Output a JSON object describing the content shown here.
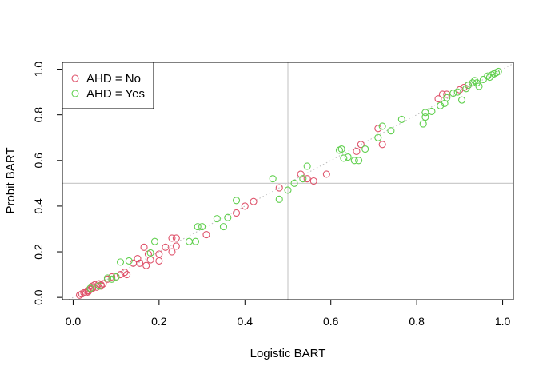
{
  "chart_data": {
    "type": "scatter",
    "xlabel": "Logistic BART",
    "ylabel": "Probit BART",
    "xlim": [
      -0.025,
      1.025
    ],
    "ylim": [
      -0.01,
      1.03
    ],
    "x_ticks": [
      "0.0",
      "0.2",
      "0.4",
      "0.6",
      "0.8",
      "1.0"
    ],
    "y_ticks": [
      "0.0",
      "0.2",
      "0.4",
      "0.6",
      "0.8",
      "1.0"
    ],
    "reference_lines": {
      "vertical_x": 0.5,
      "horizontal_y": 0.5,
      "diagonal": "y = x (dotted)"
    },
    "grid": false,
    "legend": {
      "position": "top-left",
      "entries": [
        {
          "label": "AHD = No",
          "color": "#DF536B"
        },
        {
          "label": "AHD = Yes",
          "color": "#61D04F"
        }
      ]
    },
    "series": [
      {
        "name": "AHD = No",
        "color": "#DF536B",
        "points": [
          [
            0.015,
            0.01
          ],
          [
            0.02,
            0.015
          ],
          [
            0.025,
            0.02
          ],
          [
            0.03,
            0.02
          ],
          [
            0.035,
            0.025
          ],
          [
            0.035,
            0.03
          ],
          [
            0.04,
            0.035
          ],
          [
            0.045,
            0.04
          ],
          [
            0.045,
            0.05
          ],
          [
            0.05,
            0.055
          ],
          [
            0.055,
            0.045
          ],
          [
            0.06,
            0.06
          ],
          [
            0.065,
            0.05
          ],
          [
            0.065,
            0.055
          ],
          [
            0.07,
            0.06
          ],
          [
            0.08,
            0.08
          ],
          [
            0.09,
            0.09
          ],
          [
            0.1,
            0.09
          ],
          [
            0.11,
            0.1
          ],
          [
            0.12,
            0.11
          ],
          [
            0.125,
            0.1
          ],
          [
            0.14,
            0.15
          ],
          [
            0.15,
            0.17
          ],
          [
            0.155,
            0.15
          ],
          [
            0.165,
            0.22
          ],
          [
            0.17,
            0.14
          ],
          [
            0.175,
            0.19
          ],
          [
            0.18,
            0.165
          ],
          [
            0.2,
            0.16
          ],
          [
            0.2,
            0.19
          ],
          [
            0.215,
            0.22
          ],
          [
            0.23,
            0.2
          ],
          [
            0.23,
            0.26
          ],
          [
            0.24,
            0.26
          ],
          [
            0.24,
            0.225
          ],
          [
            0.31,
            0.275
          ],
          [
            0.38,
            0.37
          ],
          [
            0.4,
            0.4
          ],
          [
            0.42,
            0.42
          ],
          [
            0.48,
            0.48
          ],
          [
            0.53,
            0.54
          ],
          [
            0.545,
            0.52
          ],
          [
            0.56,
            0.51
          ],
          [
            0.59,
            0.54
          ],
          [
            0.66,
            0.64
          ],
          [
            0.67,
            0.67
          ],
          [
            0.71,
            0.74
          ],
          [
            0.72,
            0.67
          ],
          [
            0.85,
            0.87
          ],
          [
            0.86,
            0.89
          ],
          [
            0.87,
            0.89
          ],
          [
            0.9,
            0.91
          ],
          [
            0.91,
            0.92
          ],
          [
            0.92,
            0.93
          ]
        ]
      },
      {
        "name": "AHD = Yes",
        "color": "#61D04F",
        "points": [
          [
            0.04,
            0.04
          ],
          [
            0.06,
            0.05
          ],
          [
            0.08,
            0.085
          ],
          [
            0.09,
            0.08
          ],
          [
            0.1,
            0.09
          ],
          [
            0.11,
            0.155
          ],
          [
            0.13,
            0.16
          ],
          [
            0.18,
            0.195
          ],
          [
            0.19,
            0.245
          ],
          [
            0.27,
            0.245
          ],
          [
            0.285,
            0.245
          ],
          [
            0.29,
            0.31
          ],
          [
            0.3,
            0.31
          ],
          [
            0.335,
            0.345
          ],
          [
            0.35,
            0.31
          ],
          [
            0.36,
            0.35
          ],
          [
            0.38,
            0.425
          ],
          [
            0.465,
            0.52
          ],
          [
            0.48,
            0.43
          ],
          [
            0.5,
            0.47
          ],
          [
            0.515,
            0.5
          ],
          [
            0.535,
            0.52
          ],
          [
            0.545,
            0.575
          ],
          [
            0.62,
            0.645
          ],
          [
            0.625,
            0.65
          ],
          [
            0.63,
            0.61
          ],
          [
            0.64,
            0.615
          ],
          [
            0.655,
            0.6
          ],
          [
            0.665,
            0.6
          ],
          [
            0.68,
            0.65
          ],
          [
            0.71,
            0.7
          ],
          [
            0.72,
            0.75
          ],
          [
            0.74,
            0.73
          ],
          [
            0.765,
            0.78
          ],
          [
            0.815,
            0.76
          ],
          [
            0.82,
            0.79
          ],
          [
            0.82,
            0.81
          ],
          [
            0.835,
            0.815
          ],
          [
            0.855,
            0.84
          ],
          [
            0.865,
            0.85
          ],
          [
            0.87,
            0.875
          ],
          [
            0.885,
            0.895
          ],
          [
            0.895,
            0.9
          ],
          [
            0.905,
            0.865
          ],
          [
            0.915,
            0.915
          ],
          [
            0.92,
            0.93
          ],
          [
            0.93,
            0.94
          ],
          [
            0.935,
            0.95
          ],
          [
            0.94,
            0.94
          ],
          [
            0.945,
            0.925
          ],
          [
            0.955,
            0.955
          ],
          [
            0.965,
            0.97
          ],
          [
            0.97,
            0.965
          ],
          [
            0.975,
            0.975
          ],
          [
            0.98,
            0.98
          ],
          [
            0.985,
            0.985
          ],
          [
            0.99,
            0.99
          ]
        ]
      }
    ]
  }
}
